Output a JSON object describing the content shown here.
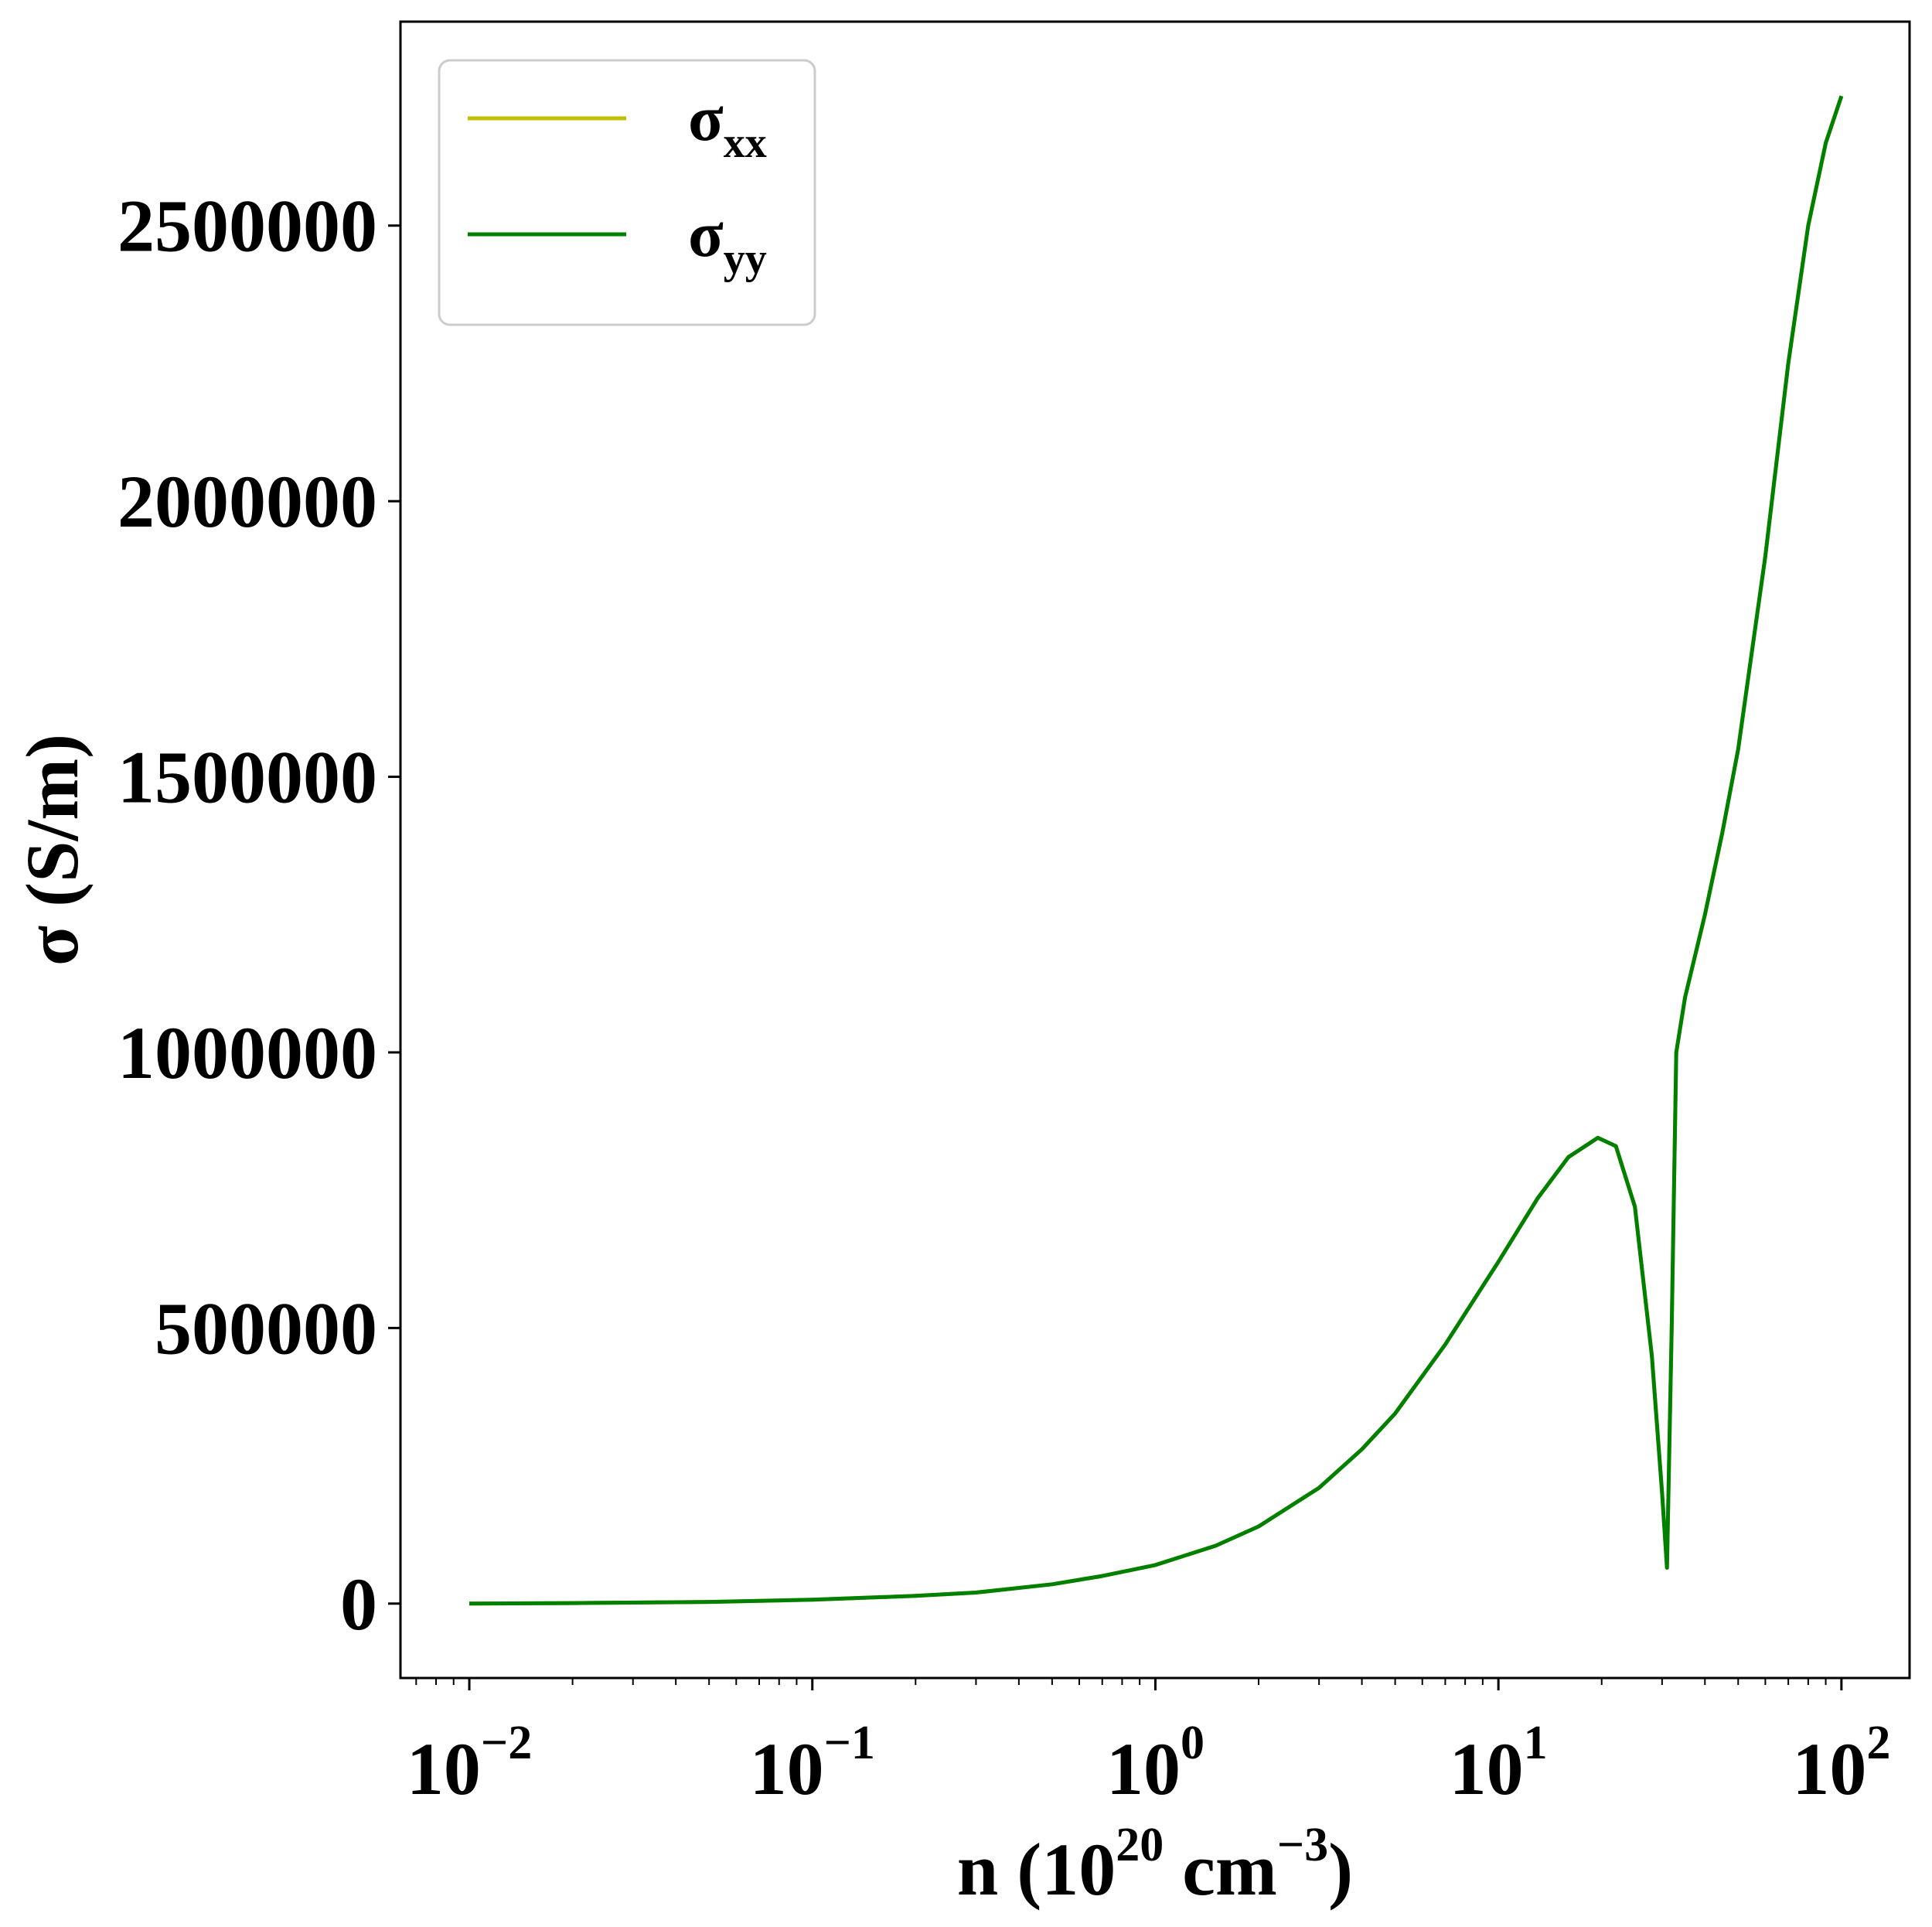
{
  "chart_data": {
    "type": "line",
    "title": "",
    "xlabel": {
      "base": "n (10",
      "sup1": "20",
      "mid": " cm",
      "sup2": "−3",
      "end": ")"
    },
    "ylabel": "σ (S/m)",
    "xscale": "log",
    "xlim": [
      0.0063,
      158
    ],
    "ylim": [
      -135000,
      2870000
    ],
    "x_ticks": [
      {
        "base": "10",
        "exp": "−2",
        "value": 0.01
      },
      {
        "base": "10",
        "exp": "−1",
        "value": 0.1
      },
      {
        "base": "10",
        "exp": "0",
        "value": 1
      },
      {
        "base": "10",
        "exp": "1",
        "value": 10
      },
      {
        "base": "10",
        "exp": "2",
        "value": 100
      }
    ],
    "y_ticks": [
      {
        "label": "0",
        "value": 0
      },
      {
        "label": "500000",
        "value": 500000
      },
      {
        "label": "1000000",
        "value": 1000000
      },
      {
        "label": "1500000",
        "value": 1500000
      },
      {
        "label": "2000000",
        "value": 2000000
      },
      {
        "label": "2500000",
        "value": 2500000
      }
    ],
    "grid": false,
    "legend_position": "top-left",
    "series": [
      {
        "name": {
          "base": "σ",
          "sub": "xx"
        },
        "color": "#bfbf00",
        "points": [
          [
            0.01,
            0
          ],
          [
            0.02,
            1000
          ],
          [
            0.05,
            3000
          ],
          [
            0.1,
            7000
          ],
          [
            0.2,
            14000
          ],
          [
            0.3,
            20000
          ],
          [
            0.5,
            35000
          ],
          [
            0.7,
            50000
          ],
          [
            1,
            70000
          ],
          [
            1.5,
            105000
          ],
          [
            2,
            140000
          ],
          [
            3,
            210000
          ],
          [
            4,
            280000
          ],
          [
            5,
            345000
          ],
          [
            7,
            470000
          ],
          [
            10,
            620000
          ],
          [
            13,
            735000
          ],
          [
            16,
            810000
          ],
          [
            19.5,
            845000
          ],
          [
            22,
            830000
          ],
          [
            25,
            720000
          ],
          [
            28,
            450000
          ],
          [
            30,
            200000
          ],
          [
            31,
            65000
          ],
          [
            32,
            500000
          ],
          [
            33,
            1000000
          ],
          [
            35,
            1100000
          ],
          [
            40,
            1250000
          ],
          [
            45,
            1400000
          ],
          [
            50,
            1550000
          ],
          [
            60,
            1900000
          ],
          [
            70,
            2250000
          ],
          [
            80,
            2500000
          ],
          [
            90,
            2650000
          ],
          [
            100,
            2735000
          ]
        ]
      },
      {
        "name": {
          "base": "σ",
          "sub": "yy"
        },
        "color": "#008000",
        "points": [
          [
            0.01,
            0
          ],
          [
            0.02,
            1000
          ],
          [
            0.05,
            3000
          ],
          [
            0.1,
            7000
          ],
          [
            0.2,
            14000
          ],
          [
            0.3,
            20000
          ],
          [
            0.5,
            35000
          ],
          [
            0.7,
            50000
          ],
          [
            1,
            70000
          ],
          [
            1.5,
            105000
          ],
          [
            2,
            140000
          ],
          [
            3,
            210000
          ],
          [
            4,
            280000
          ],
          [
            5,
            345000
          ],
          [
            7,
            470000
          ],
          [
            10,
            620000
          ],
          [
            13,
            735000
          ],
          [
            16,
            810000
          ],
          [
            19.5,
            845000
          ],
          [
            22,
            830000
          ],
          [
            25,
            720000
          ],
          [
            28,
            450000
          ],
          [
            30,
            200000
          ],
          [
            31,
            65000
          ],
          [
            32,
            500000
          ],
          [
            33,
            1000000
          ],
          [
            35,
            1100000
          ],
          [
            40,
            1250000
          ],
          [
            45,
            1400000
          ],
          [
            50,
            1550000
          ],
          [
            60,
            1900000
          ],
          [
            70,
            2250000
          ],
          [
            80,
            2500000
          ],
          [
            90,
            2650000
          ],
          [
            100,
            2735000
          ]
        ]
      }
    ]
  }
}
